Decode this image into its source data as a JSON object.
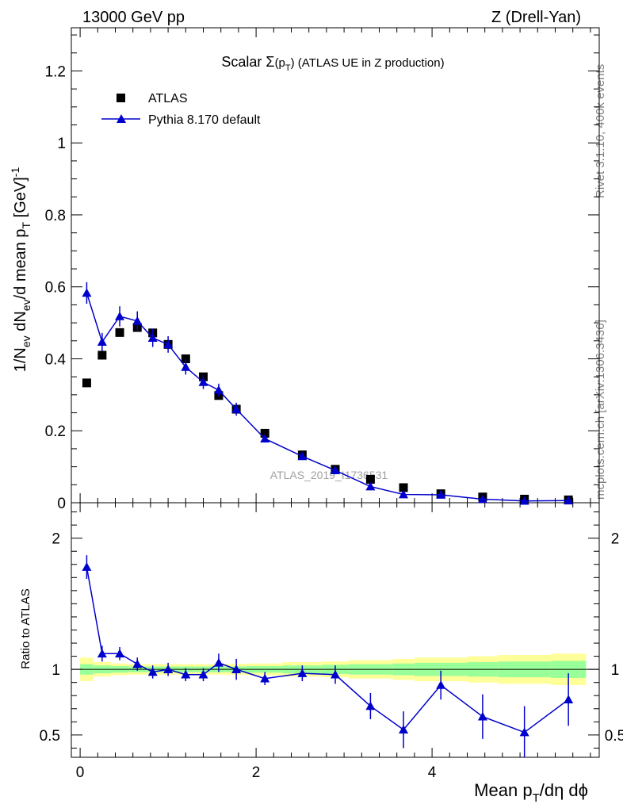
{
  "header": {
    "left": "13000 GeV pp",
    "right": "Z (Drell-Yan)"
  },
  "side_text": {
    "rivet": "Rivet 3.1.10,  400k events",
    "mcplots": "mcplots.cern.ch [arXiv:1306.3436]"
  },
  "watermark": "ATLAS_2019_I1736531",
  "colors": {
    "data": "#000000",
    "mc": "#0000cc",
    "band_inner": "#99ff99",
    "band_outer": "#ffff99"
  },
  "chart_data": [
    {
      "type": "scatter",
      "title": "Scalar Σ(p_T) (ATLAS UE in Z production)",
      "title_parts": {
        "pre": "Scalar ",
        "sigma": "Σ",
        "p": "(p",
        "sub": "T",
        "post": ") (ATLAS UE in Z production)"
      },
      "ylabel": "1/N_ev dN_ev/d mean p_T [GeV]^-1",
      "ylabel_parts": {
        "a": "1/N",
        "a_sub": "ev",
        "b": " dN",
        "b_sub": "ev",
        "c": "/d mean p",
        "c_sub": "T",
        "d": " [GeV]",
        "d_sup": "-1"
      },
      "xlim": [
        -0.1,
        5.9
      ],
      "ylim": [
        0,
        1.32
      ],
      "yticks": [
        0,
        0.2,
        0.4,
        0.6,
        0.8,
        1,
        1.2
      ],
      "ytick_labels": [
        "0",
        "0.2",
        "0.4",
        "0.6",
        "0.8",
        "1",
        "1.2"
      ],
      "legend_position": "top-left",
      "series": [
        {
          "name": "ATLAS",
          "style": "black squares",
          "x": [
            0.075,
            0.25,
            0.45,
            0.65,
            0.825,
            1.0,
            1.2,
            1.4,
            1.575,
            1.775,
            2.1,
            2.525,
            2.9,
            3.3,
            3.675,
            4.1,
            4.575,
            5.05,
            5.55
          ],
          "y": [
            0.333,
            0.41,
            0.473,
            0.487,
            0.472,
            0.44,
            0.4,
            0.35,
            0.298,
            0.26,
            0.193,
            0.133,
            0.093,
            0.065,
            0.042,
            0.025,
            0.016,
            0.01,
            0.008
          ]
        },
        {
          "name": "Pythia 8.170 default",
          "style": "blue triangles with line",
          "x": [
            0.075,
            0.25,
            0.45,
            0.65,
            0.825,
            1.0,
            1.2,
            1.4,
            1.575,
            1.775,
            2.1,
            2.525,
            2.9,
            3.3,
            3.675,
            4.1,
            4.575,
            5.05,
            5.55
          ],
          "y": [
            0.583,
            0.447,
            0.518,
            0.505,
            0.458,
            0.44,
            0.377,
            0.335,
            0.313,
            0.26,
            0.178,
            0.129,
            0.09,
            0.045,
            0.023,
            0.022,
            0.01,
            0.005,
            0.006
          ],
          "yerr": [
            0.03,
            0.025,
            0.028,
            0.027,
            0.025,
            0.023,
            0.021,
            0.019,
            0.018,
            0.018,
            0.008,
            0.006,
            0.005,
            0.003,
            0.002,
            0.002,
            0.002,
            0.002,
            0.002
          ]
        }
      ]
    },
    {
      "type": "scatter",
      "title": "",
      "ylabel": "Ratio to ATLAS",
      "xlabel": "Mean p_T/dη dϕ",
      "xlabel_parts": {
        "a": "Mean p",
        "sub": "T",
        "b": "/dη dϕ"
      },
      "xlim": [
        -0.1,
        5.9
      ],
      "ylim": [
        0.33,
        2.27
      ],
      "xticks": [
        0,
        2,
        4
      ],
      "xtick_labels": [
        "0",
        "2",
        "4"
      ],
      "yticks": [
        0.5,
        1,
        2
      ],
      "ytick_labels": [
        "0.5",
        "1",
        "2"
      ],
      "reference_line": 1,
      "bands": {
        "bin_edges": [
          0.0,
          0.15,
          0.35,
          0.55,
          0.75,
          0.9,
          1.1,
          1.3,
          1.5,
          1.65,
          1.9,
          2.3,
          2.75,
          3.05,
          3.55,
          3.8,
          4.4,
          4.75,
          5.35,
          5.75
        ],
        "inner_halfwidth": [
          0.04,
          0.03,
          0.025,
          0.022,
          0.022,
          0.022,
          0.022,
          0.022,
          0.022,
          0.022,
          0.025,
          0.03,
          0.035,
          0.04,
          0.045,
          0.05,
          0.055,
          0.06,
          0.065
        ],
        "outer_halfwidth": [
          0.09,
          0.055,
          0.045,
          0.04,
          0.04,
          0.04,
          0.04,
          0.04,
          0.04,
          0.042,
          0.045,
          0.055,
          0.06,
          0.07,
          0.08,
          0.09,
          0.1,
          0.11,
          0.12
        ]
      },
      "series": [
        {
          "name": "Pythia 8.170 default",
          "x": [
            0.075,
            0.25,
            0.45,
            0.65,
            0.825,
            1.0,
            1.2,
            1.4,
            1.575,
            1.775,
            2.1,
            2.525,
            2.9,
            3.3,
            3.675,
            4.1,
            4.575,
            5.05,
            5.55
          ],
          "y": [
            1.78,
            1.12,
            1.12,
            1.04,
            0.98,
            1.0,
            0.96,
            0.96,
            1.05,
            1.0,
            0.93,
            0.97,
            0.96,
            0.72,
            0.54,
            0.88,
            0.64,
            0.52,
            0.77
          ],
          "yerr": [
            0.09,
            0.06,
            0.05,
            0.05,
            0.05,
            0.05,
            0.05,
            0.05,
            0.07,
            0.08,
            0.05,
            0.06,
            0.07,
            0.1,
            0.14,
            0.11,
            0.17,
            0.2,
            0.2
          ]
        }
      ]
    }
  ]
}
